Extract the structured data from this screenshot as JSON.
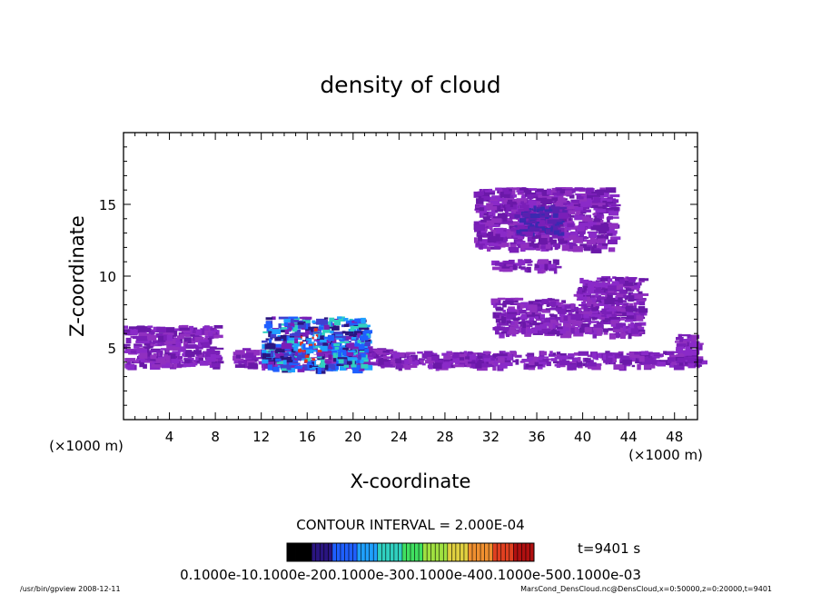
{
  "chart_data": {
    "type": "heatmap",
    "title": "density of cloud",
    "xlabel": "X-coordinate",
    "ylabel": "Z-coordinate",
    "x_unit_left": "(×1000 m)",
    "x_unit_right": "(×1000 m)",
    "xlim": [
      0,
      50
    ],
    "ylim": [
      0,
      20
    ],
    "xticks": [
      4,
      8,
      12,
      16,
      20,
      24,
      28,
      32,
      36,
      40,
      44,
      48
    ],
    "yticks": [
      5,
      10,
      15
    ],
    "contour_interval": "CONTOUR INTERVAL = 2.000E-04",
    "time": "t=9401 s",
    "colorbar_labels": "0.1000e-10.1000e-200.1000e-300.1000e-400.1000e-500.1000e-03",
    "colorbar_colors": [
      "#000000",
      "#2a1580",
      "#1f5fff",
      "#1fa0ff",
      "#30d0c0",
      "#40e060",
      "#a0e040",
      "#e0d040",
      "#f09030",
      "#e04020",
      "#b01010"
    ],
    "footer_left": "/usr/bin/gpview   2008-12-11",
    "footer_right": "MarsCond_DensCloud.nc@DensCloud,x=0:50000,z=0:20000,t=9401",
    "regions": [
      {
        "x": [
          0,
          8
        ],
        "z": [
          3.8,
          6.6
        ],
        "level": 1
      },
      {
        "x": [
          9.5,
          23
        ],
        "z": [
          3.8,
          5
        ],
        "level": 1
      },
      {
        "x": [
          12,
          21
        ],
        "z": [
          3.6,
          7.2
        ],
        "level": 3
      },
      {
        "x": [
          23,
          50
        ],
        "z": [
          3.8,
          4.8
        ],
        "level": 1
      },
      {
        "x": [
          30.5,
          42.5
        ],
        "z": [
          12,
          16.2
        ],
        "level": 1
      },
      {
        "x": [
          34,
          38
        ],
        "z": [
          13,
          15
        ],
        "level": 2
      },
      {
        "x": [
          32,
          38
        ],
        "z": [
          10.5,
          11.2
        ],
        "level": 1
      },
      {
        "x": [
          32,
          45
        ],
        "z": [
          6,
          8.5
        ],
        "level": 1
      },
      {
        "x": [
          39,
          45
        ],
        "z": [
          8.5,
          10
        ],
        "level": 1
      },
      {
        "x": [
          48,
          50
        ],
        "z": [
          4,
          6
        ],
        "level": 1
      }
    ]
  }
}
